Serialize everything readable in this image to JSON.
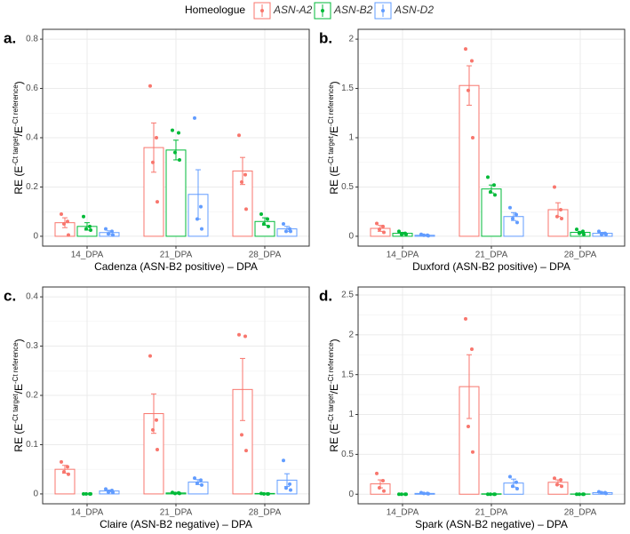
{
  "legend_title": "Homeologue",
  "ylabel": {
    "prefix": "RE (E",
    "sup1": "-Ct target",
    "mid": "/E",
    "sup2": "-Ct reference",
    "suffix": ")"
  },
  "chart_data": [
    {
      "type": "bar",
      "panel": "a.",
      "xlabel": "Cadenza (ASN-B2 positive) – DPA",
      "categories": [
        "14_DPA",
        "21_DPA",
        "28_DPA"
      ],
      "ylim": [
        -0.04,
        0.84
      ],
      "yticks": [
        0.0,
        0.2,
        0.4,
        0.6,
        0.8
      ],
      "grid": true,
      "series": [
        {
          "name": "ASN-A2",
          "color": "#f8766d",
          "values": [
            0.055,
            0.36,
            0.265
          ],
          "errors": [
            0.02,
            0.1,
            0.055
          ],
          "points": [
            [
              0.09,
              0.06,
              0.05,
              0.005
            ],
            [
              0.61,
              0.4,
              0.3,
              0.14
            ],
            [
              0.41,
              0.25,
              0.22,
              0.11
            ]
          ]
        },
        {
          "name": "ASN-B2",
          "color": "#00ba38",
          "values": [
            0.04,
            0.35,
            0.06
          ],
          "errors": [
            0.015,
            0.04,
            0.015
          ],
          "points": [
            [
              0.08,
              0.04,
              0.03,
              0.025
            ],
            [
              0.43,
              0.42,
              0.34,
              0.31
            ],
            [
              0.09,
              0.07,
              0.05,
              0.04
            ]
          ]
        },
        {
          "name": "ASN-D2",
          "color": "#619cff",
          "values": [
            0.015,
            0.17,
            0.03
          ],
          "errors": [
            0.007,
            0.1,
            0.01
          ],
          "points": [
            [
              0.03,
              0.02,
              0.01,
              0.005
            ],
            [
              0.48,
              0.12,
              0.07,
              0.03
            ],
            [
              0.05,
              0.03,
              0.02,
              0.02
            ]
          ]
        }
      ]
    },
    {
      "type": "bar",
      "panel": "b.",
      "xlabel": "Duxford (ASN-B2 positive) – DPA",
      "categories": [
        "14_DPA",
        "21_DPA",
        "28_DPA"
      ],
      "ylim": [
        -0.1,
        2.1
      ],
      "yticks": [
        0.0,
        0.5,
        1.0,
        1.5,
        2.0
      ],
      "grid": true,
      "series": [
        {
          "name": "ASN-A2",
          "color": "#f8766d",
          "values": [
            0.08,
            1.53,
            0.27
          ],
          "errors": [
            0.03,
            0.2,
            0.07
          ],
          "points": [
            [
              0.13,
              0.1,
              0.07,
              0.04
            ],
            [
              1.9,
              1.78,
              1.48,
              1.0
            ],
            [
              0.5,
              0.27,
              0.2,
              0.18
            ]
          ]
        },
        {
          "name": "ASN-B2",
          "color": "#00ba38",
          "values": [
            0.03,
            0.48,
            0.04
          ],
          "errors": [
            0.01,
            0.04,
            0.01
          ],
          "points": [
            [
              0.05,
              0.03,
              0.02,
              0.02
            ],
            [
              0.6,
              0.52,
              0.45,
              0.42
            ],
            [
              0.07,
              0.05,
              0.03,
              0.02
            ]
          ]
        },
        {
          "name": "ASN-D2",
          "color": "#619cff",
          "values": [
            0.01,
            0.2,
            0.03
          ],
          "errors": [
            0.005,
            0.04,
            0.01
          ],
          "points": [
            [
              0.02,
              0.01,
              0.01,
              0.005
            ],
            [
              0.29,
              0.22,
              0.18,
              0.14
            ],
            [
              0.05,
              0.03,
              0.02,
              0.02
            ]
          ]
        }
      ]
    },
    {
      "type": "bar",
      "panel": "c.",
      "xlabel": "Claire (ASN-B2 negative) – DPA",
      "categories": [
        "14_DPA",
        "21_DPA",
        "28_DPA"
      ],
      "ylim": [
        -0.02,
        0.42
      ],
      "yticks": [
        0.0,
        0.1,
        0.2,
        0.3,
        0.4
      ],
      "grid": true,
      "series": [
        {
          "name": "ASN-A2",
          "color": "#f8766d",
          "values": [
            0.05,
            0.163,
            0.212
          ],
          "errors": [
            0.008,
            0.04,
            0.063
          ],
          "points": [
            [
              0.065,
              0.055,
              0.045,
              0.04
            ],
            [
              0.28,
              0.15,
              0.13,
              0.09
            ],
            [
              0.323,
              0.32,
              0.12,
              0.088
            ]
          ]
        },
        {
          "name": "ASN-B2",
          "color": "#00ba38",
          "values": [
            0.0,
            0.002,
            0.001
          ],
          "errors": [
            0.0,
            0.001,
            0.0005
          ],
          "points": [
            [
              0.0,
              0.0,
              0.0,
              0.0
            ],
            [
              0.003,
              0.002,
              0.001,
              0.001
            ],
            [
              0.001,
              0.0,
              0.0,
              0.0
            ]
          ]
        },
        {
          "name": "ASN-D2",
          "color": "#619cff",
          "values": [
            0.006,
            0.024,
            0.028
          ],
          "errors": [
            0.002,
            0.005,
            0.013
          ],
          "points": [
            [
              0.01,
              0.007,
              0.004,
              0.003
            ],
            [
              0.032,
              0.028,
              0.022,
              0.018
            ],
            [
              0.068,
              0.02,
              0.012,
              0.008
            ]
          ]
        }
      ]
    },
    {
      "type": "bar",
      "panel": "d.",
      "xlabel": "Spark (ASN-B2 negative) – DPA",
      "categories": [
        "14_DPA",
        "21_DPA",
        "28_DPA"
      ],
      "ylim": [
        -0.12,
        2.6
      ],
      "yticks": [
        0.0,
        0.5,
        1.0,
        1.5,
        2.0,
        2.5
      ],
      "grid": true,
      "series": [
        {
          "name": "ASN-A2",
          "color": "#f8766d",
          "values": [
            0.13,
            1.35,
            0.15
          ],
          "errors": [
            0.05,
            0.4,
            0.03
          ],
          "points": [
            [
              0.26,
              0.17,
              0.08,
              0.04
            ],
            [
              2.2,
              1.82,
              0.85,
              0.53
            ],
            [
              0.2,
              0.18,
              0.12,
              0.1
            ]
          ]
        },
        {
          "name": "ASN-B2",
          "color": "#00ba38",
          "values": [
            0.0,
            0.005,
            0.003
          ],
          "errors": [
            0.0,
            0.002,
            0.001
          ],
          "points": [
            [
              0.0,
              0.0,
              0.0,
              0.0
            ],
            [
              0.0,
              0.0,
              0.0,
              0.0
            ],
            [
              0.0,
              0.0,
              0.0,
              0.0
            ]
          ]
        },
        {
          "name": "ASN-D2",
          "color": "#619cff",
          "values": [
            0.01,
            0.14,
            0.02
          ],
          "errors": [
            0.005,
            0.05,
            0.005
          ],
          "points": [
            [
              0.02,
              0.01,
              0.01,
              0.005
            ],
            [
              0.22,
              0.15,
              0.1,
              0.07
            ],
            [
              0.03,
              0.02,
              0.02,
              0.01
            ]
          ]
        }
      ]
    }
  ]
}
